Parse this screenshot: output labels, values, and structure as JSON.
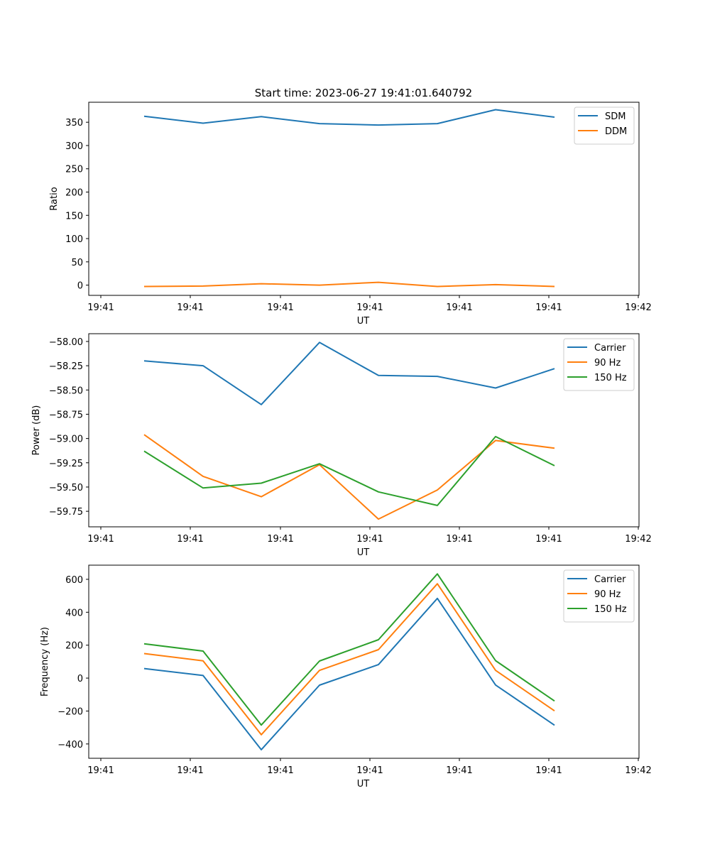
{
  "figure": {
    "title": "Start time: 2023-06-27 19:41:01.640792"
  },
  "chart_data": [
    {
      "type": "line",
      "ylabel": "Ratio",
      "xlabel": "UT",
      "x_tick_labels": [
        "19:41",
        "19:41",
        "19:41",
        "19:41",
        "19:41",
        "19:41",
        "19:41"
      ],
      "x_extra_tick_label": "19:42",
      "y_ticks": [
        0,
        50,
        100,
        150,
        200,
        250,
        300,
        350
      ],
      "y_tick_labels": [
        "0",
        "50",
        "100",
        "150",
        "200",
        "250",
        "300",
        "350"
      ],
      "ylim": [
        -22,
        393
      ],
      "legend_position": "top-right",
      "series": [
        {
          "name": "SDM",
          "color": "#1f77b4",
          "values": [
            363,
            348,
            362,
            347,
            344,
            347,
            377,
            361
          ]
        },
        {
          "name": "DDM",
          "color": "#ff7f0e",
          "values": [
            -3,
            -2,
            3,
            0,
            6,
            -3,
            1,
            -3
          ]
        }
      ]
    },
    {
      "type": "line",
      "ylabel": "Power (dB)",
      "xlabel": "UT",
      "x_tick_labels": [
        "19:41",
        "19:41",
        "19:41",
        "19:41",
        "19:41",
        "19:41",
        "19:41"
      ],
      "x_extra_tick_label": "19:42",
      "y_ticks": [
        -58.0,
        -58.25,
        -58.5,
        -58.75,
        -59.0,
        -59.25,
        -59.5,
        -59.75
      ],
      "y_tick_labels": [
        "−58.00",
        "−58.25",
        "−58.50",
        "−58.75",
        "−59.00",
        "−59.25",
        "−59.50",
        "−59.75"
      ],
      "ylim": [
        -59.91,
        -57.92
      ],
      "legend_position": "top-right",
      "series": [
        {
          "name": "Carrier",
          "color": "#1f77b4",
          "values": [
            -58.2,
            -58.25,
            -58.65,
            -58.01,
            -58.35,
            -58.36,
            -58.48,
            -58.28
          ]
        },
        {
          "name": "90 Hz",
          "color": "#ff7f0e",
          "values": [
            -58.96,
            -59.39,
            -59.6,
            -59.27,
            -59.83,
            -59.53,
            -59.02,
            -59.1
          ]
        },
        {
          "name": "150 Hz",
          "color": "#2ca02c",
          "values": [
            -59.13,
            -59.51,
            -59.46,
            -59.26,
            -59.55,
            -59.69,
            -58.98,
            -59.28
          ]
        }
      ]
    },
    {
      "type": "line",
      "ylabel": "Frequency (Hz)",
      "xlabel": "UT",
      "x_tick_labels": [
        "19:41",
        "19:41",
        "19:41",
        "19:41",
        "19:41",
        "19:41",
        "19:41"
      ],
      "x_extra_tick_label": "19:42",
      "y_ticks": [
        -400,
        -200,
        0,
        200,
        400,
        600
      ],
      "y_tick_labels": [
        "−400",
        "−200",
        "0",
        "200",
        "400",
        "600"
      ],
      "ylim": [
        -487,
        686
      ],
      "legend_position": "top-right",
      "series": [
        {
          "name": "Carrier",
          "color": "#1f77b4",
          "values": [
            58,
            16,
            -435,
            -43,
            82,
            484,
            -42,
            -286
          ]
        },
        {
          "name": "90 Hz",
          "color": "#ff7f0e",
          "values": [
            149,
            105,
            -344,
            47,
            173,
            573,
            47,
            -199
          ]
        },
        {
          "name": "150 Hz",
          "color": "#2ca02c",
          "values": [
            208,
            164,
            -285,
            104,
            233,
            633,
            106,
            -139
          ]
        }
      ]
    }
  ]
}
